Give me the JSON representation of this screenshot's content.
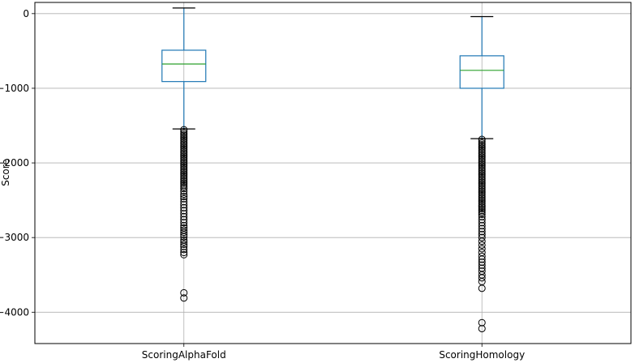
{
  "chart_data": {
    "type": "box",
    "title": "",
    "xlabel": "",
    "ylabel": "Score",
    "ylim": [
      -4420,
      150
    ],
    "yticks": [
      0,
      -1000,
      -2000,
      -3000,
      -4000
    ],
    "ytick_labels": [
      "0",
      "−1000",
      "−2000",
      "−3000",
      "−4000"
    ],
    "categories": [
      "ScoringAlphaFold",
      "ScoringHomology"
    ],
    "grid": true,
    "colors": {
      "box": "#1f77b4",
      "median": "#2ca02c",
      "whisker_cap": "#000000",
      "outlier": "#000000",
      "grid": "#b0b0b0"
    },
    "boxes": [
      {
        "label": "ScoringAlphaFold",
        "whisker_high": 75,
        "q3": -490,
        "median": -675,
        "q1": -910,
        "whisker_low": -1545,
        "outliers_dense_range": [
          -2360,
          -1555
        ],
        "outliers": [
          -2380,
          -2420,
          -2450,
          -2480,
          -2520,
          -2560,
          -2600,
          -2640,
          -2680,
          -2720,
          -2760,
          -2800,
          -2840,
          -2870,
          -2900,
          -2930,
          -2960,
          -2990,
          -3030,
          -3060,
          -3090,
          -3120,
          -3160,
          -3200,
          -3230,
          -3740,
          -3810
        ]
      },
      {
        "label": "ScoringHomology",
        "whisker_high": -40,
        "q3": -565,
        "median": -760,
        "q1": -1000,
        "whisker_low": -1675,
        "outliers_dense_range": [
          -2700,
          -1685
        ],
        "outliers": [
          -2720,
          -2760,
          -2800,
          -2840,
          -2880,
          -2920,
          -2960,
          -3000,
          -3050,
          -3100,
          -3150,
          -3200,
          -3250,
          -3290,
          -3330,
          -3370,
          -3410,
          -3450,
          -3500,
          -3540,
          -3590,
          -3680,
          -4140,
          -4220
        ]
      }
    ]
  }
}
